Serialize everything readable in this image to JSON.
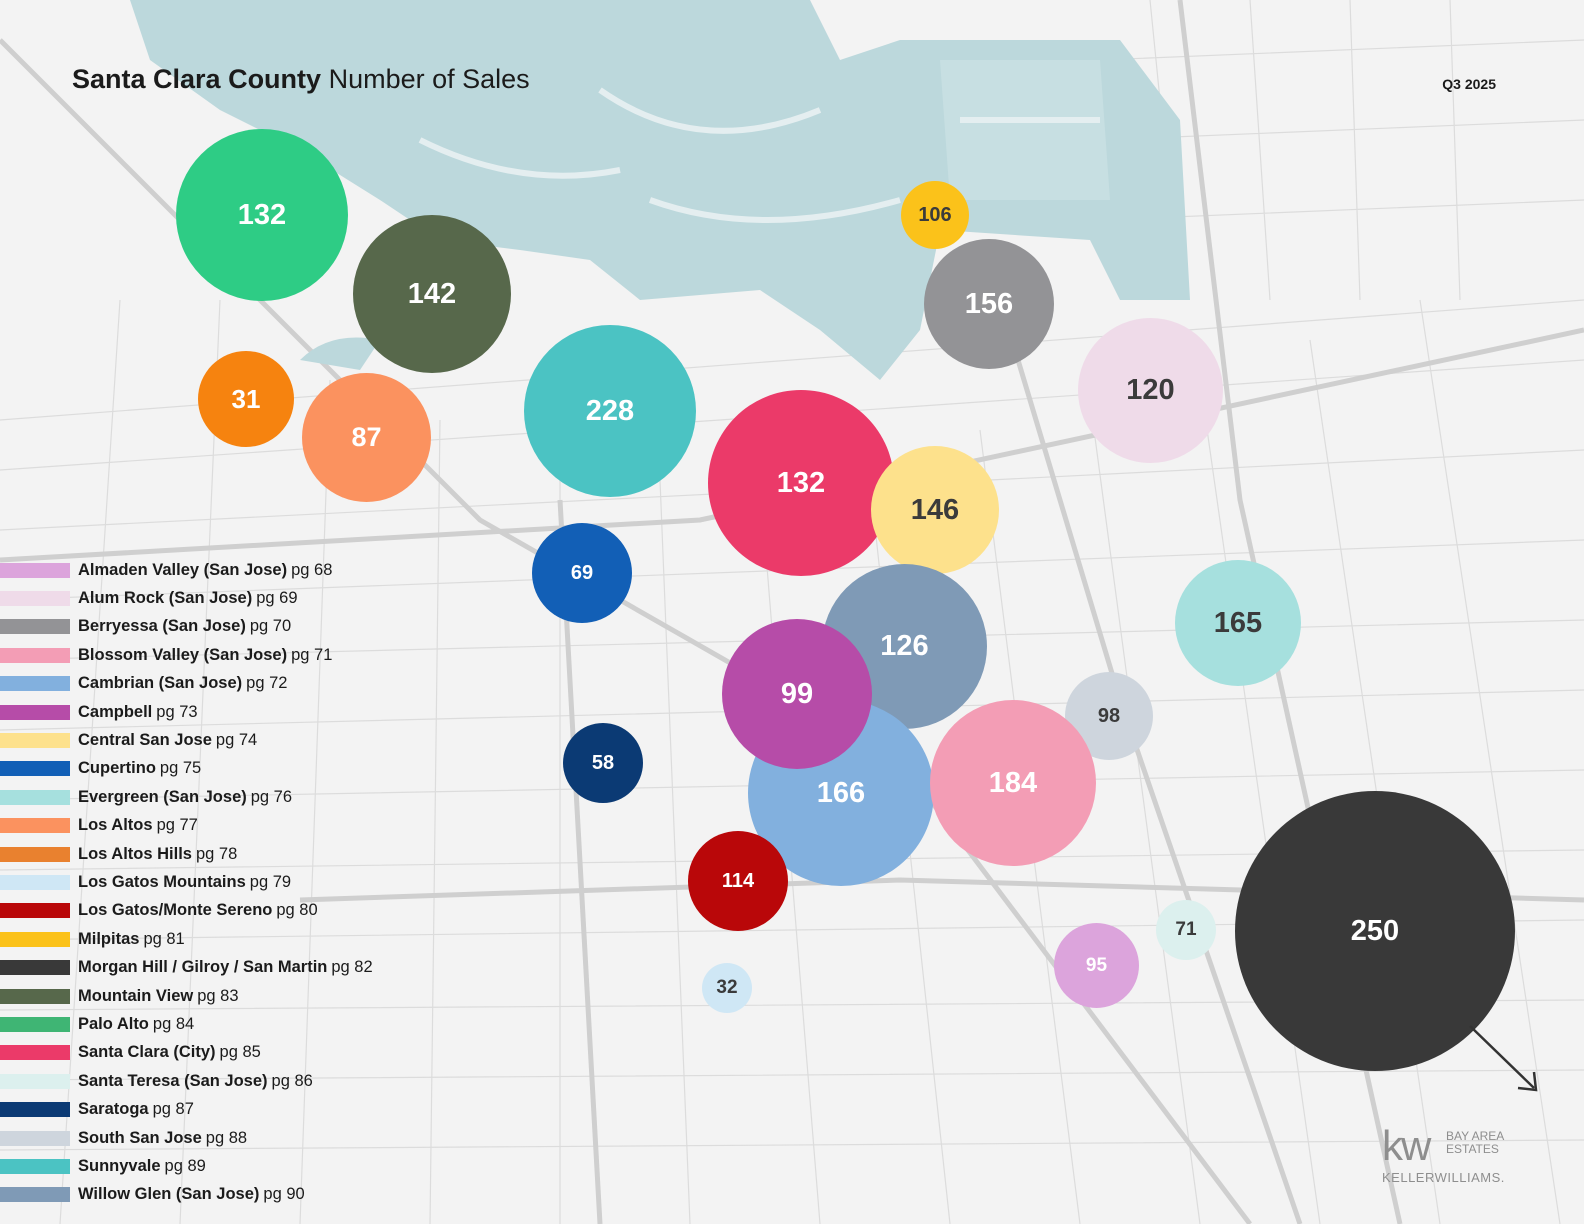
{
  "header": {
    "title_bold": "Santa Clara County",
    "title_rest": "Number of Sales",
    "quarter": "Q3 2025"
  },
  "bubbles": [
    {
      "id": "palo-alto",
      "value": "132",
      "color": "#2ecc85",
      "text_color": "#ffffff"
    },
    {
      "id": "mountain-view",
      "value": "142",
      "color": "#57684b",
      "text_color": "#ffffff"
    },
    {
      "id": "los-altos-hills",
      "value": "31",
      "color": "#f6830f",
      "text_color": "#ffffff"
    },
    {
      "id": "los-altos",
      "value": "87",
      "color": "#fb925f",
      "text_color": "#ffffff"
    },
    {
      "id": "sunnyvale",
      "value": "228",
      "color": "#4bc3c3",
      "text_color": "#ffffff"
    },
    {
      "id": "milpitas",
      "value": "106",
      "color": "#fbc21a",
      "text_color": "#3b3b3b"
    },
    {
      "id": "berryessa",
      "value": "156",
      "color": "#939396",
      "text_color": "#ffffff"
    },
    {
      "id": "alum-rock",
      "value": "120",
      "color": "#efdbe9",
      "text_color": "#3b3b3b"
    },
    {
      "id": "santa-clara",
      "value": "132",
      "color": "#eb3a69",
      "text_color": "#ffffff"
    },
    {
      "id": "central-san-jose",
      "value": "146",
      "color": "#fde18c",
      "text_color": "#3b3b3b"
    },
    {
      "id": "cupertino",
      "value": "69",
      "color": "#125fb6",
      "text_color": "#ffffff"
    },
    {
      "id": "evergreen",
      "value": "165",
      "color": "#a6e0de",
      "text_color": "#3b3b3b"
    },
    {
      "id": "willow-glen",
      "value": "126",
      "color": "#7f9ab6",
      "text_color": "#ffffff"
    },
    {
      "id": "cambrian",
      "value": "166",
      "color": "#82b0de",
      "text_color": "#ffffff"
    },
    {
      "id": "campbell",
      "value": "99",
      "color": "#b64ca8",
      "text_color": "#ffffff"
    },
    {
      "id": "south-san-jose",
      "value": "98",
      "color": "#ced5dd",
      "text_color": "#3b3b3b"
    },
    {
      "id": "blossom-valley",
      "value": "184",
      "color": "#f39db5",
      "text_color": "#ffffff"
    },
    {
      "id": "saratoga",
      "value": "58",
      "color": "#0b3a74",
      "text_color": "#ffffff"
    },
    {
      "id": "los-gatos-monte-sereno",
      "value": "114",
      "color": "#b90709",
      "text_color": "#ffffff"
    },
    {
      "id": "santa-teresa",
      "value": "71",
      "color": "#dcf0ee",
      "text_color": "#3b3b3b"
    },
    {
      "id": "almaden-valley",
      "value": "95",
      "color": "#dca4dc",
      "text_color": "#ffffff"
    },
    {
      "id": "los-gatos-mountains",
      "value": "32",
      "color": "#cfe7f5",
      "text_color": "#3b3b3b"
    },
    {
      "id": "morgan-hill-gilroy-san-martin",
      "value": "250",
      "color": "#393939",
      "text_color": "#ffffff"
    }
  ],
  "legend": [
    {
      "name": "Almaden Valley (San Jose)",
      "page": "pg 68",
      "color": "#dca4dc"
    },
    {
      "name": "Alum Rock (San Jose)",
      "page": "pg 69",
      "color": "#efdbe9"
    },
    {
      "name": "Berryessa (San Jose)",
      "page": "pg 70",
      "color": "#939396"
    },
    {
      "name": "Blossom Valley (San Jose)",
      "page": "pg 71",
      "color": "#f39db5"
    },
    {
      "name": "Cambrian (San Jose)",
      "page": "pg 72",
      "color": "#82b0de"
    },
    {
      "name": "Campbell",
      "page": "pg 73",
      "color": "#b64ca8"
    },
    {
      "name": "Central San Jose",
      "page": "pg 74",
      "color": "#fde18c"
    },
    {
      "name": "Cupertino",
      "page": "pg 75",
      "color": "#125fb6"
    },
    {
      "name": "Evergreen (San Jose)",
      "page": "pg 76",
      "color": "#a6e0de"
    },
    {
      "name": "Los Altos",
      "page": "pg 77",
      "color": "#fb925f"
    },
    {
      "name": "Los Altos Hills",
      "page": "pg 78",
      "color": "#e9812f"
    },
    {
      "name": "Los Gatos Mountains",
      "page": "pg 79",
      "color": "#cfe7f5"
    },
    {
      "name": "Los Gatos/Monte Sereno",
      "page": "pg 80",
      "color": "#b90709"
    },
    {
      "name": "Milpitas",
      "page": "pg 81",
      "color": "#fbc21a"
    },
    {
      "name": "Morgan Hill / Gilroy / San Martin",
      "page": "pg 82",
      "color": "#393939"
    },
    {
      "name": "Mountain View",
      "page": "pg 83",
      "color": "#57684b"
    },
    {
      "name": "Palo Alto",
      "page": "pg 84",
      "color": "#3fb574"
    },
    {
      "name": "Santa Clara (City)",
      "page": "pg 85",
      "color": "#eb3a69"
    },
    {
      "name": "Santa Teresa (San Jose)",
      "page": "pg 86",
      "color": "#dcf0ee"
    },
    {
      "name": "Saratoga",
      "page": "pg 87",
      "color": "#0b3a74"
    },
    {
      "name": "South San Jose",
      "page": "pg 88",
      "color": "#ced5dd"
    },
    {
      "name": "Sunnyvale",
      "page": "pg 89",
      "color": "#4bc3c3"
    },
    {
      "name": "Willow Glen (San Jose)",
      "page": "pg 90",
      "color": "#7f9ab6"
    }
  ],
  "logo": {
    "mark": "kw",
    "line1": "BAY AREA",
    "line2": "ESTATES",
    "brand": "KELLERWILLIAMS."
  },
  "colors": {
    "water": "#bcd8dc",
    "roads": "#d4d4d4",
    "land": "#f2f2f2"
  }
}
